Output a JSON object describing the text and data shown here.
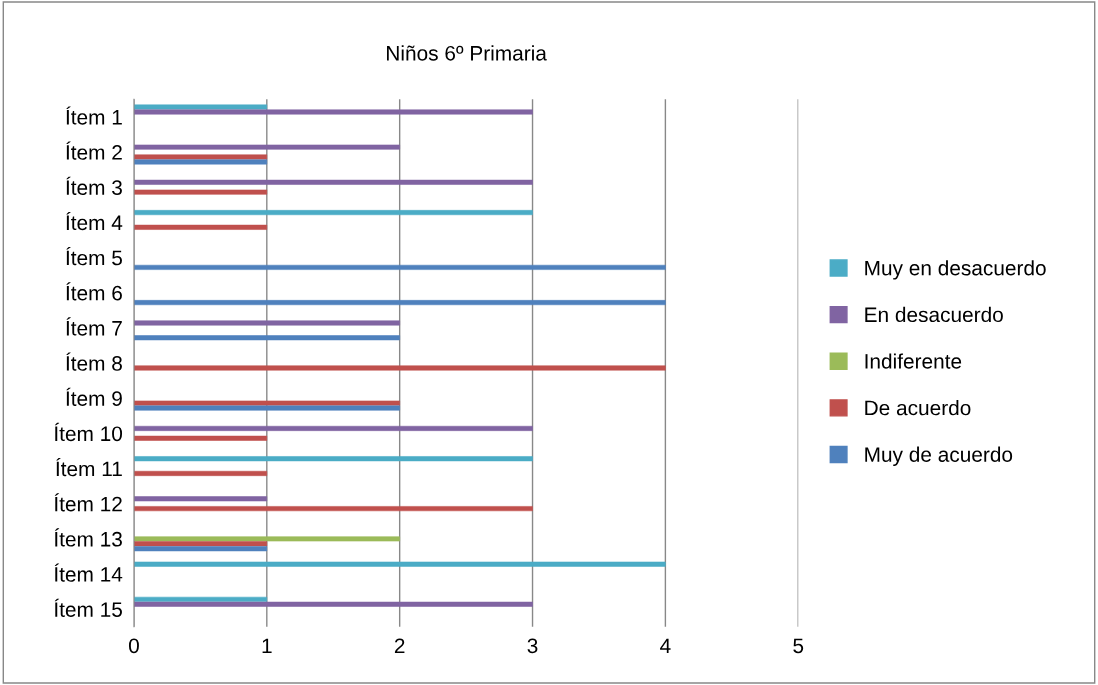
{
  "chart_data": {
    "type": "bar",
    "orientation": "horizontal",
    "title": "Niños 6º Primaria",
    "categories": [
      "Ítem 1",
      "Ítem 2",
      "Ítem 3",
      "Ítem 4",
      "Ítem 5",
      "Ítem 6",
      "Ítem 7",
      "Ítem 8",
      "Ítem 9",
      "Ítem 10",
      "Ítem 11",
      "Ítem 12",
      "Ítem 13",
      "Ítem 14",
      "Ítem 15"
    ],
    "series": [
      {
        "name": "Muy en desacuerdo",
        "color": "#4bacc6",
        "values": [
          1,
          null,
          null,
          3,
          null,
          null,
          null,
          null,
          null,
          null,
          3,
          null,
          null,
          4,
          1
        ]
      },
      {
        "name": "En desacuerdo",
        "color": "#8064a2",
        "values": [
          3,
          2,
          3,
          null,
          null,
          null,
          2,
          null,
          null,
          3,
          null,
          1,
          null,
          null,
          3
        ]
      },
      {
        "name": "Indiferente",
        "color": "#9bbb59",
        "values": [
          null,
          null,
          null,
          null,
          null,
          null,
          null,
          null,
          null,
          null,
          null,
          null,
          2,
          null,
          null
        ]
      },
      {
        "name": "De acuerdo",
        "color": "#c0504d",
        "values": [
          null,
          1,
          1,
          1,
          null,
          null,
          null,
          4,
          2,
          1,
          1,
          3,
          1,
          null,
          null
        ]
      },
      {
        "name": "Muy de acuerdo",
        "color": "#4f81bd",
        "values": [
          null,
          1,
          null,
          null,
          4,
          4,
          2,
          null,
          2,
          null,
          null,
          null,
          1,
          null,
          null
        ]
      }
    ],
    "xlim": [
      0,
      5
    ],
    "xticks": [
      0,
      1,
      2,
      3,
      4,
      5
    ],
    "grid": "x",
    "legend": "right"
  }
}
